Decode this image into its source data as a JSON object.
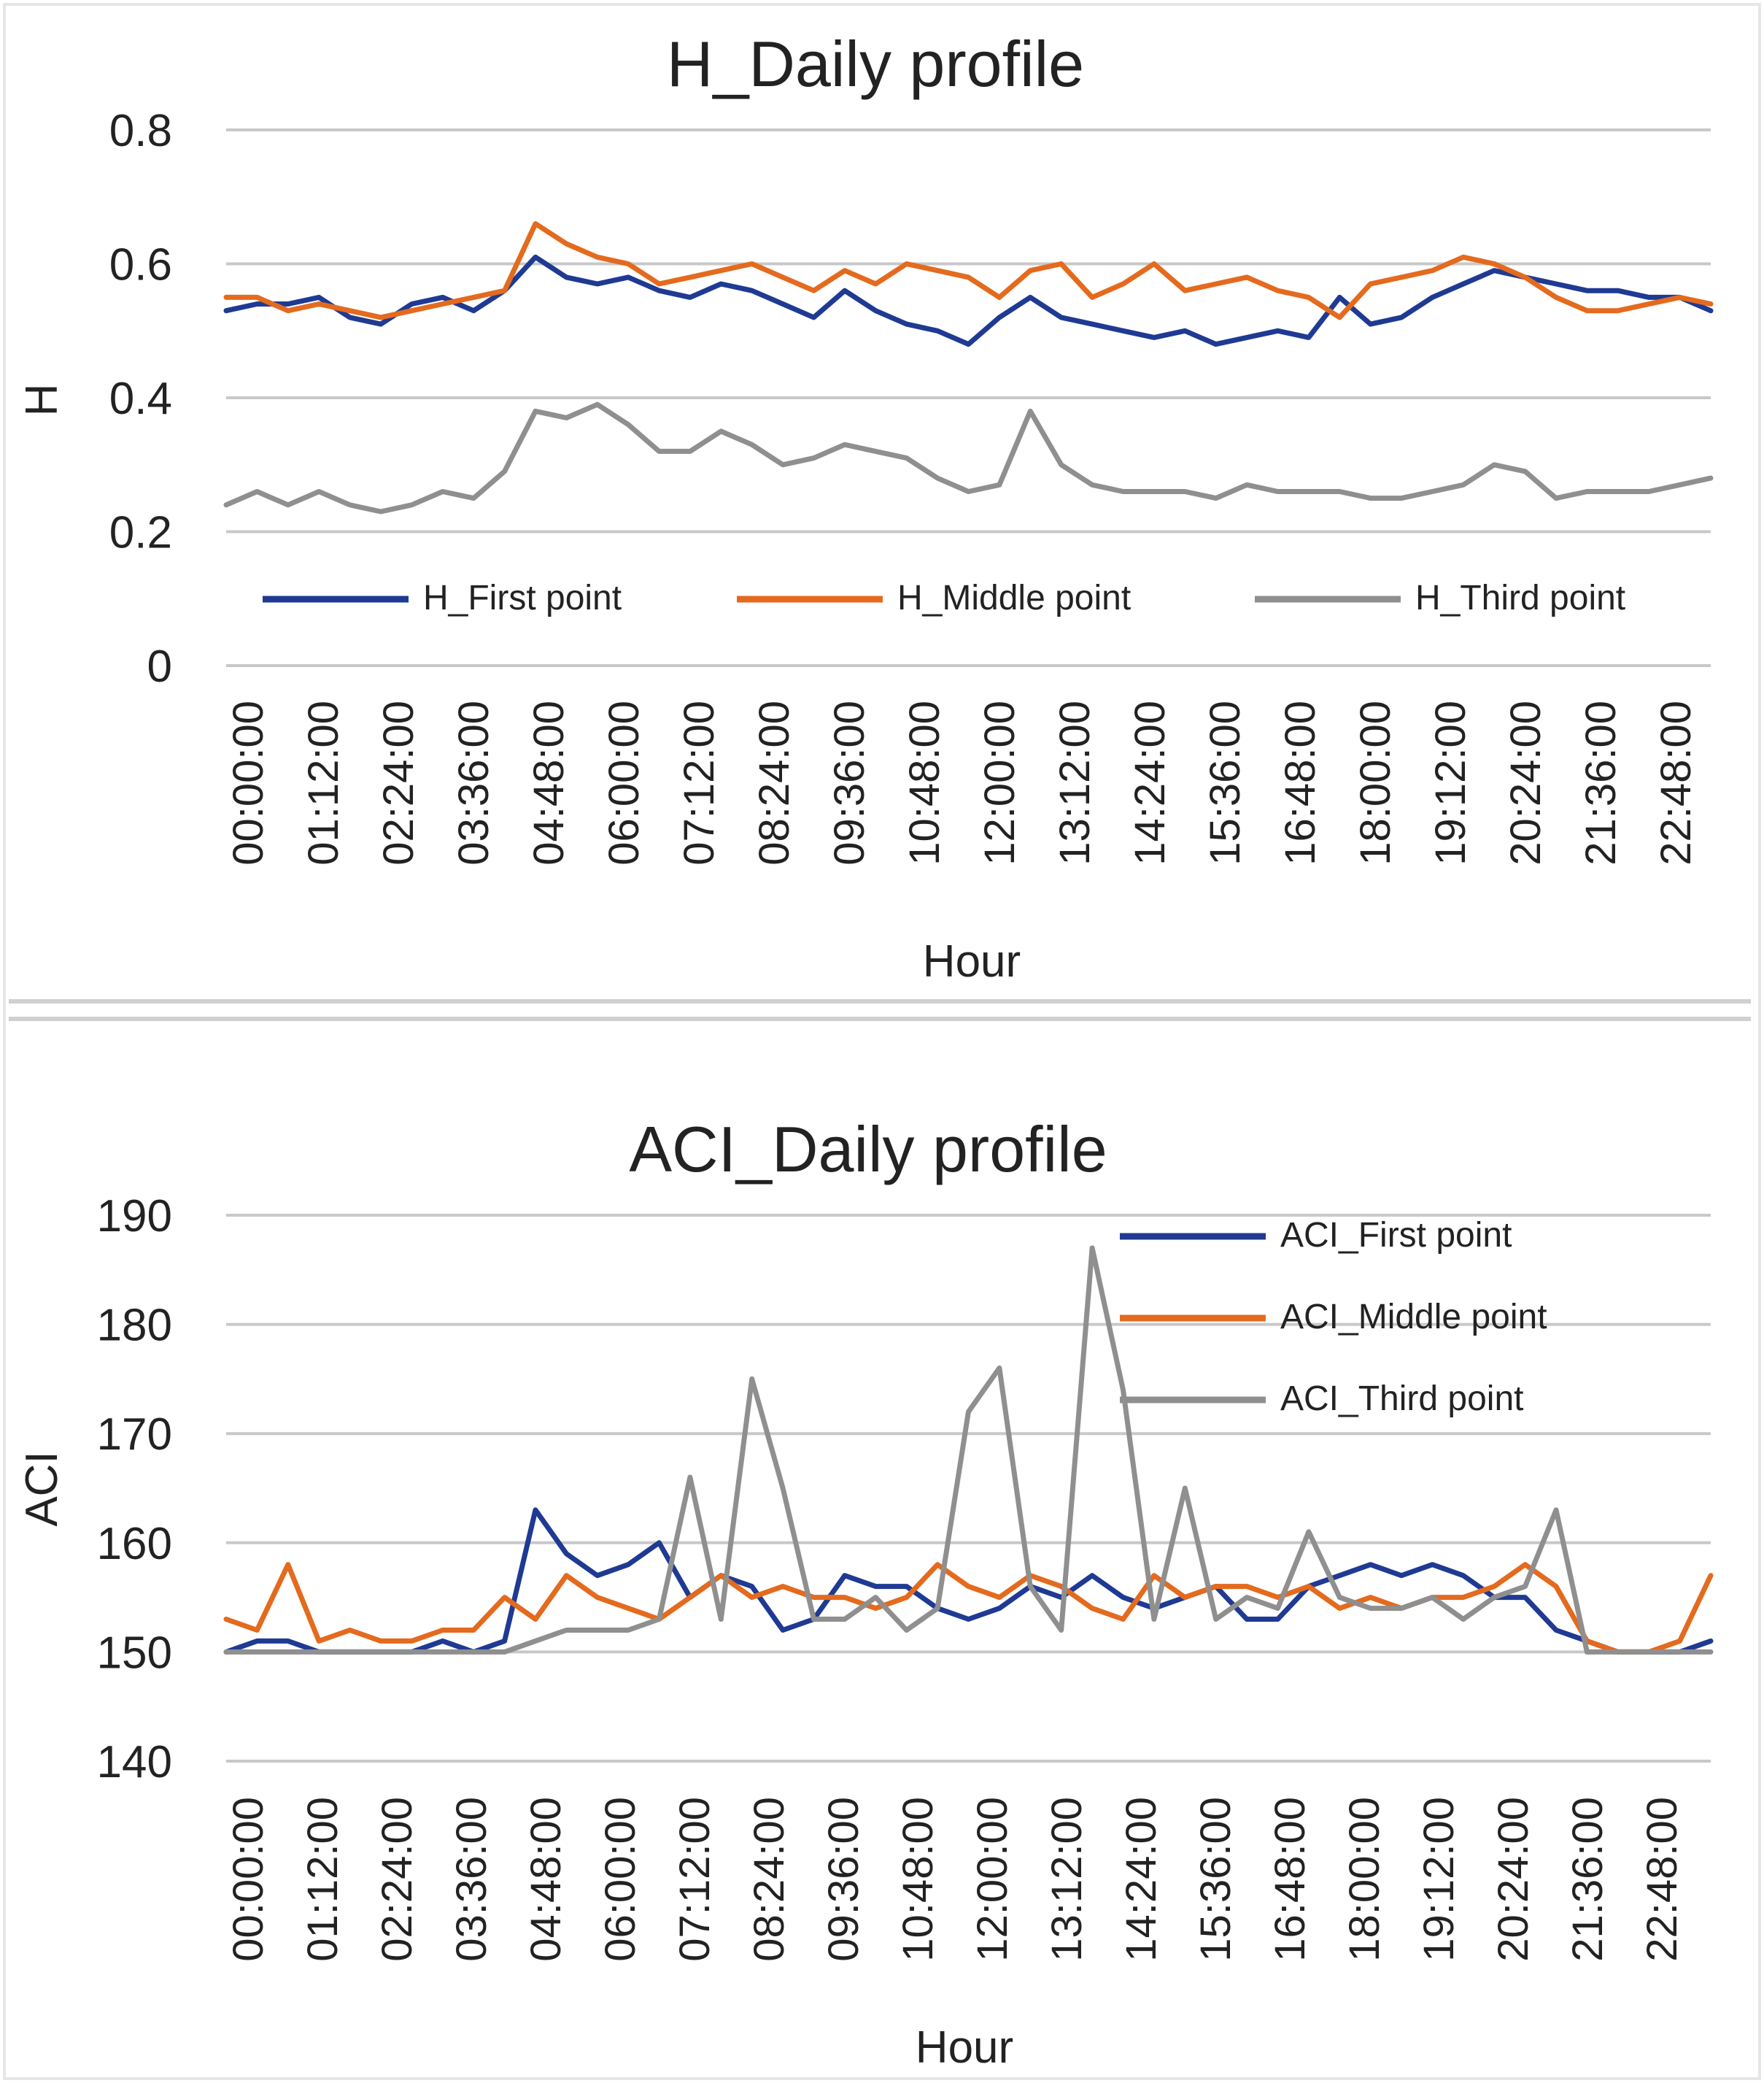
{
  "colors": {
    "first": "#1f3a93",
    "middle": "#e46a1e",
    "third": "#8f8f8f",
    "grid": "#c8c8c8",
    "divider": "#d0d0d0"
  },
  "chart_data": [
    {
      "id": "h",
      "type": "line",
      "title": "H_Daily profile",
      "xlabel": "Hour",
      "ylabel": "H",
      "ylim": [
        0,
        0.8
      ],
      "yticks": [
        "0",
        "0.2",
        "0.4",
        "0.6",
        "0.8"
      ],
      "ytick_values": [
        0,
        0.2,
        0.4,
        0.6,
        0.8
      ],
      "xticks": [
        "00:00:00",
        "01:12:00",
        "02:24:00",
        "03:36:00",
        "04:48:00",
        "06:00:00",
        "07:12:00",
        "08:24:00",
        "09:36:00",
        "10:48:00",
        "12:00:00",
        "13:12:00",
        "14:24:00",
        "15:36:00",
        "16:48:00",
        "18:00:00",
        "19:12:00",
        "20:24:00",
        "21:36:00",
        "22:48:00"
      ],
      "legend_position": "bottom-inside",
      "x_hours": [
        0,
        0.5,
        1,
        1.5,
        2,
        2.5,
        3,
        3.5,
        4,
        4.5,
        5,
        5.5,
        6,
        6.5,
        7,
        7.5,
        8,
        8.5,
        9,
        9.5,
        10,
        10.5,
        11,
        11.5,
        12,
        12.5,
        13,
        13.5,
        14,
        14.5,
        15,
        15.5,
        16,
        16.5,
        17,
        17.5,
        18,
        18.5,
        19,
        19.5,
        20,
        20.5,
        21,
        21.5,
        22,
        22.5,
        23,
        23.5,
        24
      ],
      "series": [
        {
          "name": "H_First point",
          "color_key": "first",
          "values": [
            0.53,
            0.54,
            0.54,
            0.55,
            0.52,
            0.51,
            0.54,
            0.55,
            0.53,
            0.56,
            0.61,
            0.58,
            0.57,
            0.58,
            0.56,
            0.55,
            0.57,
            0.56,
            0.54,
            0.52,
            0.56,
            0.53,
            0.51,
            0.5,
            0.48,
            0.52,
            0.55,
            0.52,
            0.51,
            0.5,
            0.49,
            0.5,
            0.48,
            0.49,
            0.5,
            0.49,
            0.55,
            0.51,
            0.52,
            0.55,
            0.57,
            0.59,
            0.58,
            0.57,
            0.56,
            0.56,
            0.55,
            0.55,
            0.53
          ]
        },
        {
          "name": "H_Middle point",
          "color_key": "middle",
          "values": [
            0.55,
            0.55,
            0.53,
            0.54,
            0.53,
            0.52,
            0.53,
            0.54,
            0.55,
            0.56,
            0.66,
            0.63,
            0.61,
            0.6,
            0.57,
            0.58,
            0.59,
            0.6,
            0.58,
            0.56,
            0.59,
            0.57,
            0.6,
            0.59,
            0.58,
            0.55,
            0.59,
            0.6,
            0.55,
            0.57,
            0.6,
            0.56,
            0.57,
            0.58,
            0.56,
            0.55,
            0.52,
            0.57,
            0.58,
            0.59,
            0.61,
            0.6,
            0.58,
            0.55,
            0.53,
            0.53,
            0.54,
            0.55,
            0.54
          ]
        },
        {
          "name": "H_Third point",
          "color_key": "third",
          "values": [
            0.24,
            0.26,
            0.24,
            0.26,
            0.24,
            0.23,
            0.24,
            0.26,
            0.25,
            0.29,
            0.38,
            0.37,
            0.39,
            0.36,
            0.32,
            0.32,
            0.35,
            0.33,
            0.3,
            0.31,
            0.33,
            0.32,
            0.31,
            0.28,
            0.26,
            0.27,
            0.38,
            0.3,
            0.27,
            0.26,
            0.26,
            0.26,
            0.25,
            0.27,
            0.26,
            0.26,
            0.26,
            0.25,
            0.25,
            0.26,
            0.27,
            0.3,
            0.29,
            0.25,
            0.26,
            0.26,
            0.26,
            0.27,
            0.28
          ]
        }
      ]
    },
    {
      "id": "aci",
      "type": "line",
      "title": "ACI_Daily profile",
      "xlabel": "Hour",
      "ylabel": "ACI",
      "ylim": [
        140,
        190
      ],
      "yticks": [
        "140",
        "150",
        "160",
        "170",
        "180",
        "190"
      ],
      "ytick_values": [
        140,
        150,
        160,
        170,
        180,
        190
      ],
      "xticks": [
        "00:00:00",
        "01:12:00",
        "02:24:00",
        "03:36:00",
        "04:48:00",
        "06:00:00",
        "07:12:00",
        "08:24:00",
        "09:36:00",
        "10:48:00",
        "12:00:00",
        "13:12:00",
        "14:24:00",
        "15:36:00",
        "16:48:00",
        "18:00:00",
        "19:12:00",
        "20:24:00",
        "21:36:00",
        "22:48:00"
      ],
      "legend_position": "top-right",
      "x_hours": [
        0,
        0.5,
        1,
        1.5,
        2,
        2.5,
        3,
        3.5,
        4,
        4.5,
        5,
        5.5,
        6,
        6.5,
        7,
        7.5,
        8,
        8.5,
        9,
        9.5,
        10,
        10.5,
        11,
        11.5,
        12,
        12.5,
        13,
        13.5,
        14,
        14.5,
        15,
        15.5,
        16,
        16.5,
        17,
        17.5,
        18,
        18.5,
        19,
        19.5,
        20,
        20.5,
        21,
        21.5,
        22,
        22.5,
        23,
        23.5,
        24
      ],
      "series": [
        {
          "name": "ACI_First point",
          "color_key": "first",
          "values": [
            150,
            151,
            151,
            150,
            150,
            150,
            150,
            151,
            150,
            151,
            163,
            159,
            157,
            158,
            160,
            155,
            157,
            156,
            152,
            153,
            157,
            156,
            156,
            154,
            153,
            154,
            156,
            155,
            157,
            155,
            154,
            155,
            156,
            153,
            153,
            156,
            157,
            158,
            157,
            158,
            157,
            155,
            155,
            152,
            151,
            150,
            150,
            150,
            151
          ]
        },
        {
          "name": "ACI_Middle point",
          "color_key": "middle",
          "values": [
            153,
            152,
            158,
            151,
            152,
            151,
            151,
            152,
            152,
            155,
            153,
            157,
            155,
            154,
            153,
            155,
            157,
            155,
            156,
            155,
            155,
            154,
            155,
            158,
            156,
            155,
            157,
            156,
            154,
            153,
            157,
            155,
            156,
            156,
            155,
            156,
            154,
            155,
            154,
            155,
            155,
            156,
            158,
            156,
            151,
            150,
            150,
            151,
            157
          ]
        },
        {
          "name": "ACI_Third point",
          "color_key": "third",
          "values": [
            150,
            150,
            150,
            150,
            150,
            150,
            150,
            150,
            150,
            150,
            151,
            152,
            152,
            152,
            153,
            166,
            153,
            175,
            165,
            153,
            153,
            155,
            152,
            154,
            172,
            176,
            156,
            152,
            187,
            174,
            153,
            165,
            153,
            155,
            154,
            161,
            155,
            154,
            154,
            155,
            153,
            155,
            156,
            163,
            150,
            150,
            150,
            150,
            150
          ]
        }
      ]
    }
  ]
}
